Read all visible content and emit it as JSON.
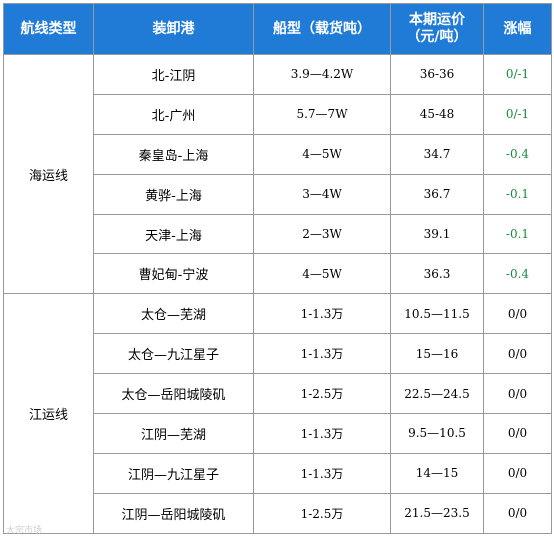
{
  "table": {
    "headers": [
      "航线类型",
      "装卸港",
      "船型（载货吨）",
      "本期运价",
      "（元/吨）",
      "涨幅"
    ],
    "groups": [
      {
        "type": "海运线",
        "rows": [
          {
            "port": "北-江阴",
            "ship": "3.9—4.2W",
            "price": "36-36",
            "change": "0/-1"
          },
          {
            "port": "北-广州",
            "ship": "5.7—7W",
            "price": "45-48",
            "change": "0/-1"
          },
          {
            "port": "秦皇岛-上海",
            "ship": "4—5W",
            "price": "34.7",
            "change": "-0.4"
          },
          {
            "port": "黄骅-上海",
            "ship": "3—4W",
            "price": "36.7",
            "change": "-0.1"
          },
          {
            "port": "天津-上海",
            "ship": "2—3W",
            "price": "39.1",
            "change": "-0.1"
          },
          {
            "port": "曹妃甸-宁波",
            "ship": "4—5W",
            "price": "36.3",
            "change": "-0.4"
          }
        ]
      },
      {
        "type": "江运线",
        "rows": [
          {
            "port": "太仓—芜湖",
            "ship": "1-1.3万",
            "price": "10.5—11.5",
            "change": "0/0"
          },
          {
            "port": "太仓—九江星子",
            "ship": "1-1.3万",
            "price": "15—16",
            "change": "0/0"
          },
          {
            "port": "太仓—岳阳城陵矶",
            "ship": "1-2.5万",
            "price": "22.5—24.5",
            "change": "0/0"
          },
          {
            "port": "江阴—芜湖",
            "ship": "1-1.3万",
            "price": "9.5—10.5",
            "change": "0/0"
          },
          {
            "port": "江阴—九江星子",
            "ship": "1-1.3万",
            "price": "14—15",
            "change": "0/0"
          },
          {
            "port": "江阴—岳阳城陵矶",
            "ship": "1-2.5万",
            "price": "21.5—23.5",
            "change": "0/0"
          }
        ]
      }
    ]
  },
  "watermark": "大宗市场"
}
